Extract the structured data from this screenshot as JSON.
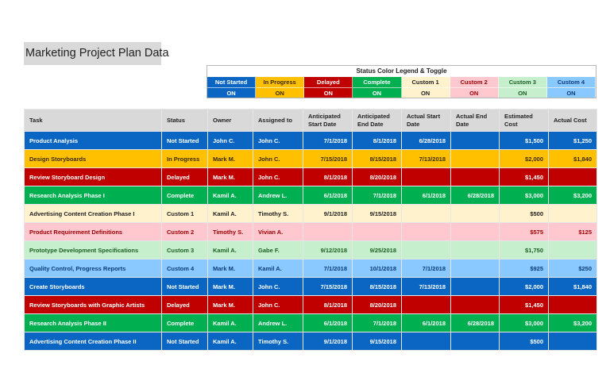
{
  "title": "Marketing Project Plan Data",
  "legend": {
    "title": "Status Color Legend & Toggle",
    "statuses": [
      {
        "label": "Not Started",
        "toggle": "ON",
        "class": "s-not-started",
        "color": "#0a66c2"
      },
      {
        "label": "In Progress",
        "toggle": "ON",
        "class": "s-in-progress",
        "color": "#ffc000"
      },
      {
        "label": "Delayed",
        "toggle": "ON",
        "class": "s-delayed",
        "color": "#c00000"
      },
      {
        "label": "Complete",
        "toggle": "ON",
        "class": "s-complete",
        "color": "#00b050"
      },
      {
        "label": "Custom 1",
        "toggle": "ON",
        "class": "s-custom1",
        "color": "#fff2cc"
      },
      {
        "label": "Custom 2",
        "toggle": "ON",
        "class": "s-custom2",
        "color": "#ffc7ce"
      },
      {
        "label": "Custom 3",
        "toggle": "ON",
        "class": "s-custom3",
        "color": "#c6efce"
      },
      {
        "label": "Custom 4",
        "toggle": "ON",
        "class": "s-custom4",
        "color": "#8ac9ff"
      }
    ]
  },
  "table": {
    "columns": [
      "Task",
      "Status",
      "Owner",
      "Assigned to",
      "Anticipated Start Date",
      "Anticipated End Date",
      "Actual Start Date",
      "Actual End Date",
      "Estimated Cost",
      "Actual Cost"
    ],
    "rows": [
      {
        "task": "Product Analysis",
        "status": "Not Started",
        "owner": "John C.",
        "assigned": "John C.",
        "ant_start": "7/1/2018",
        "ant_end": "8/1/2018",
        "act_start": "6/28/2018",
        "act_end": "",
        "est_cost": "$1,500",
        "act_cost": "$1,250",
        "class": "s-not-started"
      },
      {
        "task": "Design Storyboards",
        "status": "In Progress",
        "owner": "Mark M.",
        "assigned": "John C.",
        "ant_start": "7/15/2018",
        "ant_end": "8/15/2018",
        "act_start": "7/13/2018",
        "act_end": "",
        "est_cost": "$2,000",
        "act_cost": "$1,840",
        "class": "s-in-progress"
      },
      {
        "task": "Review Storyboard Design",
        "status": "Delayed",
        "owner": "Mark M.",
        "assigned": "John C.",
        "ant_start": "8/1/2018",
        "ant_end": "8/20/2018",
        "act_start": "",
        "act_end": "",
        "est_cost": "$1,450",
        "act_cost": "",
        "class": "s-delayed"
      },
      {
        "task": "Research Analysis Phase I",
        "status": "Complete",
        "owner": "Kamil A.",
        "assigned": "Andrew L.",
        "ant_start": "6/1/2018",
        "ant_end": "7/1/2018",
        "act_start": "6/1/2018",
        "act_end": "6/28/2018",
        "est_cost": "$3,000",
        "act_cost": "$3,200",
        "class": "s-complete"
      },
      {
        "task": "Advertising Content Creation Phase I",
        "status": "Custom 1",
        "owner": "Kamil A.",
        "assigned": "Timothy S.",
        "ant_start": "9/1/2018",
        "ant_end": "9/15/2018",
        "act_start": "",
        "act_end": "",
        "est_cost": "$500",
        "act_cost": "",
        "class": "s-custom1"
      },
      {
        "task": "Product Requirement Definitions",
        "status": "Custom 2",
        "owner": "Timothy S.",
        "assigned": "Vivian A.",
        "ant_start": "",
        "ant_end": "",
        "act_start": "",
        "act_end": "",
        "est_cost": "$575",
        "act_cost": "$125",
        "class": "s-custom2"
      },
      {
        "task": "Prototype Development Specifications",
        "status": "Custom 3",
        "owner": "Kamil A.",
        "assigned": "Gabe F.",
        "ant_start": "9/12/2018",
        "ant_end": "9/25/2018",
        "act_start": "",
        "act_end": "",
        "est_cost": "$1,750",
        "act_cost": "",
        "class": "s-custom3"
      },
      {
        "task": "Quality Control, Progress Reports",
        "status": "Custom 4",
        "owner": "Mark M.",
        "assigned": "Kamil A.",
        "ant_start": "7/1/2018",
        "ant_end": "10/1/2018",
        "act_start": "7/1/2018",
        "act_end": "",
        "est_cost": "$925",
        "act_cost": "$250",
        "class": "s-custom4"
      },
      {
        "task": "Create Storyboards",
        "status": "Not Started",
        "owner": "Mark M.",
        "assigned": "John C.",
        "ant_start": "7/15/2018",
        "ant_end": "8/15/2018",
        "act_start": "7/13/2018",
        "act_end": "",
        "est_cost": "$2,000",
        "act_cost": "$1,840",
        "class": "s-not-started"
      },
      {
        "task": "Review Storyboards with Graphic Artists",
        "status": "Delayed",
        "owner": "Mark M.",
        "assigned": "John C.",
        "ant_start": "8/1/2018",
        "ant_end": "8/20/2018",
        "act_start": "",
        "act_end": "",
        "est_cost": "$1,450",
        "act_cost": "",
        "class": "s-delayed"
      },
      {
        "task": "Research Analysis Phase II",
        "status": "Complete",
        "owner": "Kamil A.",
        "assigned": "Andrew L.",
        "ant_start": "6/1/2018",
        "ant_end": "7/1/2018",
        "act_start": "6/1/2018",
        "act_end": "6/28/2018",
        "est_cost": "$3,000",
        "act_cost": "$3,200",
        "class": "s-complete"
      },
      {
        "task": "Advertising Content Creation Phase II",
        "status": "Not Started",
        "owner": "Kamil A.",
        "assigned": "Timothy S.",
        "ant_start": "9/1/2018",
        "ant_end": "9/15/2018",
        "act_start": "",
        "act_end": "",
        "est_cost": "$500",
        "act_cost": "",
        "class": "s-not-started"
      }
    ]
  }
}
